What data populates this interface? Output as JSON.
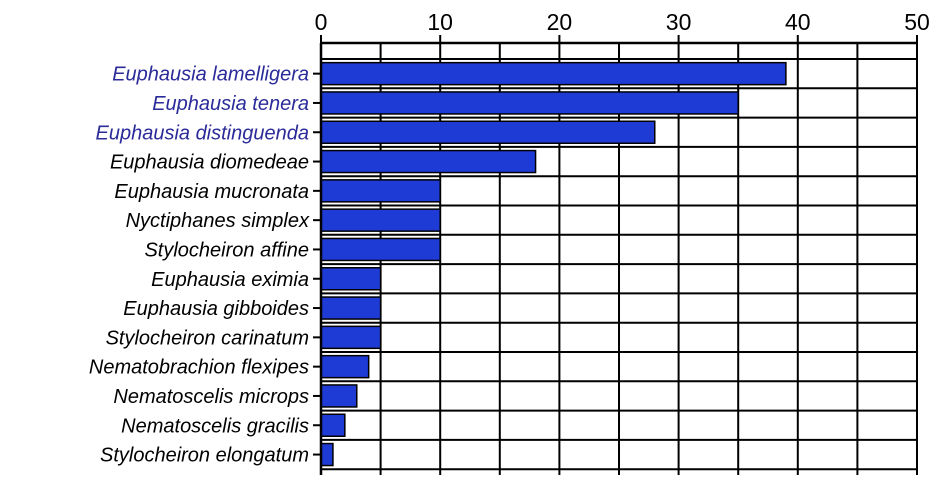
{
  "chart_data": {
    "type": "bar",
    "orientation": "horizontal",
    "title": "",
    "xlabel": "",
    "ylabel": "",
    "xlim": [
      0,
      50
    ],
    "x_ticks": [
      0,
      10,
      20,
      30,
      40,
      50
    ],
    "x_tick_labels": [
      "0",
      "10",
      "20",
      "30",
      "40",
      "50"
    ],
    "x_axis_position": "top",
    "grid": true,
    "legend": "none",
    "bar_color": "#1f3bd6",
    "bar_edge_color": "#000000",
    "categories": [
      "Euphausia lamelligera",
      "Euphausia tenera",
      "Euphausia distinguenda",
      "Euphausia diomedeae",
      "Euphausia mucronata",
      "Nyctiphanes simplex",
      "Stylocheiron affine",
      "Euphausia eximia",
      "Euphausia gibboides",
      "Stylocheiron carinatum",
      "Nematobrachion flexipes",
      "Nematoscelis microps",
      "Nematoscelis gracilis",
      "Stylocheiron elongatum"
    ],
    "label_colors": [
      "#2b2b9a",
      "#2b2b9a",
      "#2b2b9a",
      "#000000",
      "#000000",
      "#000000",
      "#000000",
      "#000000",
      "#000000",
      "#000000",
      "#000000",
      "#000000",
      "#000000",
      "#000000"
    ],
    "values": [
      39,
      35,
      28,
      18,
      10,
      10,
      10,
      5,
      5,
      5,
      4,
      3,
      2,
      1
    ]
  }
}
